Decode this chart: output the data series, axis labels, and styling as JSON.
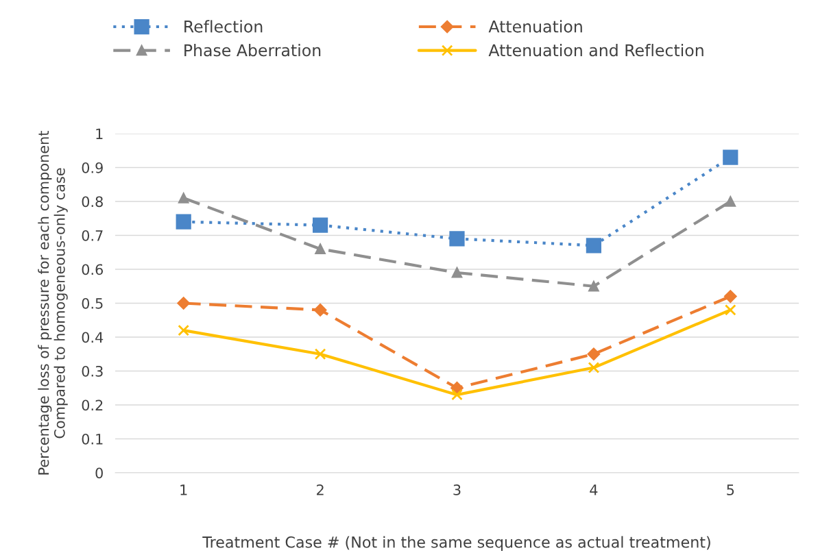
{
  "chart_data": {
    "type": "line",
    "categories": [
      "1",
      "2",
      "3",
      "4",
      "5"
    ],
    "xlabel": "Treatment Case # (Not in the same sequence as actual treatment)",
    "ylabel": "Percentage loss of pressure for each component\nCompared to homogeneous-only case",
    "ylim": [
      0,
      1
    ],
    "yticks": [
      0,
      0.1,
      0.2,
      0.3,
      0.4,
      0.5,
      0.6,
      0.7,
      0.8,
      0.9,
      1
    ],
    "grid": "y",
    "legend": "top",
    "series": [
      {
        "name": "Reflection",
        "color": "#4a86c8",
        "marker": "square",
        "line_style": "dotted",
        "values": [
          0.74,
          0.73,
          0.69,
          0.67,
          0.93
        ]
      },
      {
        "name": "Attenuation",
        "color": "#ed7d31",
        "marker": "diamond",
        "line_style": "dashed",
        "values": [
          0.5,
          0.48,
          0.25,
          0.35,
          0.52
        ]
      },
      {
        "name": "Phase Aberration",
        "color": "#8f8f8f",
        "marker": "triangle",
        "line_style": "dashed",
        "values": [
          0.81,
          0.66,
          0.59,
          0.55,
          0.8
        ]
      },
      {
        "name": "Attenuation and Reflection",
        "color": "#ffc000",
        "marker": "cross",
        "line_style": "solid",
        "values": [
          0.42,
          0.35,
          0.23,
          0.31,
          0.48
        ]
      }
    ]
  }
}
